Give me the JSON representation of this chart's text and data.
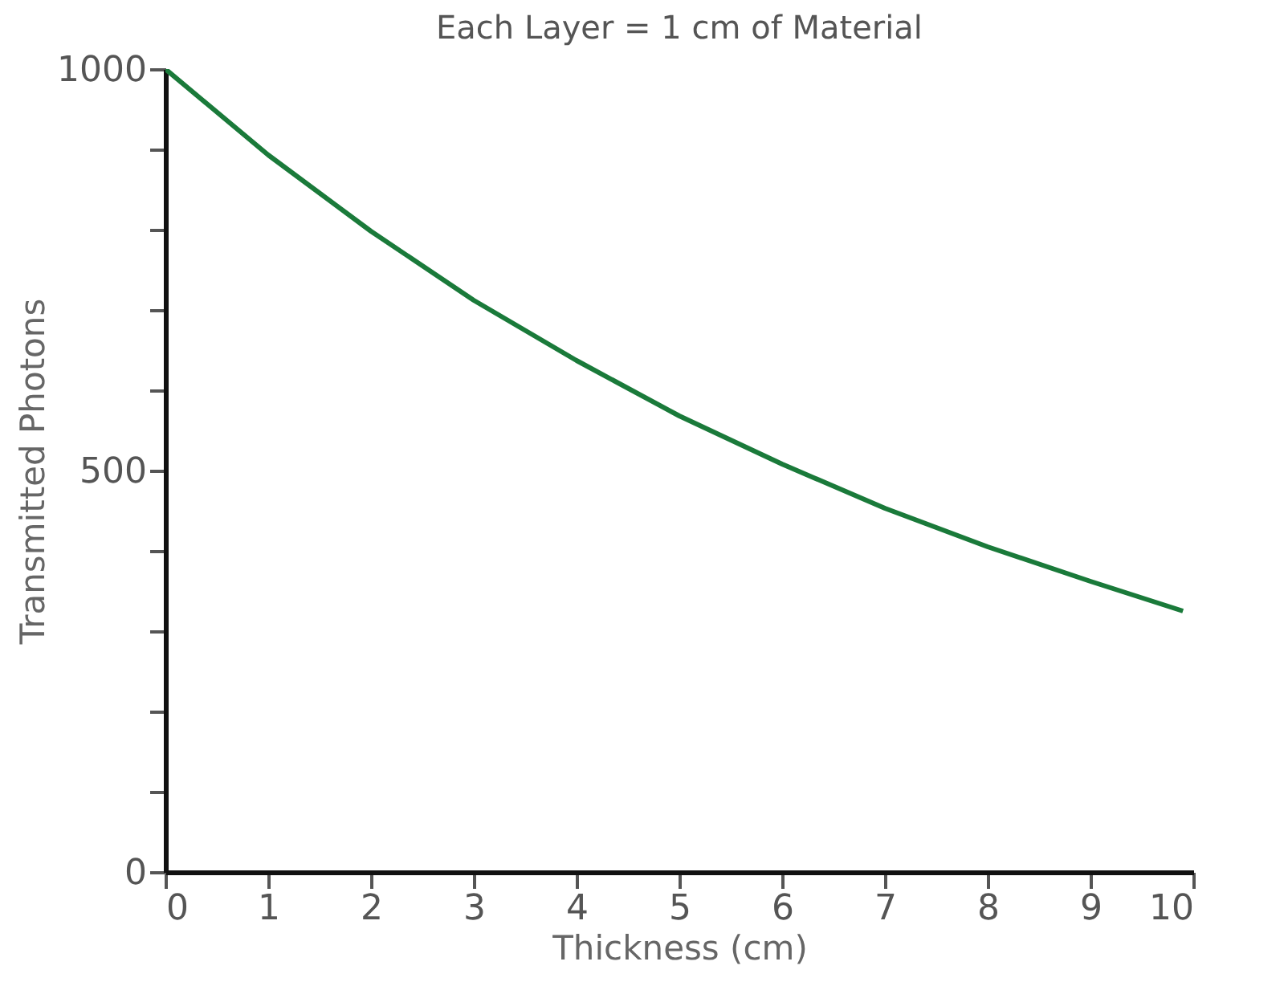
{
  "chart_data": {
    "type": "line",
    "title": "Each Layer = 1 cm of Material",
    "xlabel": "Thickness (cm)",
    "ylabel": "Transmitted Photons",
    "x": [
      0,
      1,
      2,
      3,
      4,
      5,
      6,
      7,
      8,
      9,
      9.9
    ],
    "series": [
      {
        "color": "#1a7a3a",
        "values": [
          1000,
          893,
          798,
          712,
          637,
          568,
          508,
          453,
          405,
          362,
          325
        ]
      }
    ],
    "xlim": [
      0,
      10
    ],
    "xticks": [
      0,
      1,
      2,
      3,
      4,
      5,
      6,
      7,
      8,
      9,
      10
    ],
    "ylim": [
      0,
      1000
    ],
    "yticks": [
      0,
      {
        "value": 100,
        "label": null
      },
      {
        "value": 200,
        "label": null
      },
      {
        "value": 300,
        "label": null
      },
      {
        "value": 400,
        "label": null
      },
      500,
      {
        "value": 600,
        "label": null
      },
      {
        "value": 700,
        "label": null
      },
      {
        "value": 800,
        "label": null
      },
      {
        "value": 900,
        "label": null
      },
      1000
    ],
    "grid": false,
    "marker": "none",
    "line_style": "solid"
  }
}
